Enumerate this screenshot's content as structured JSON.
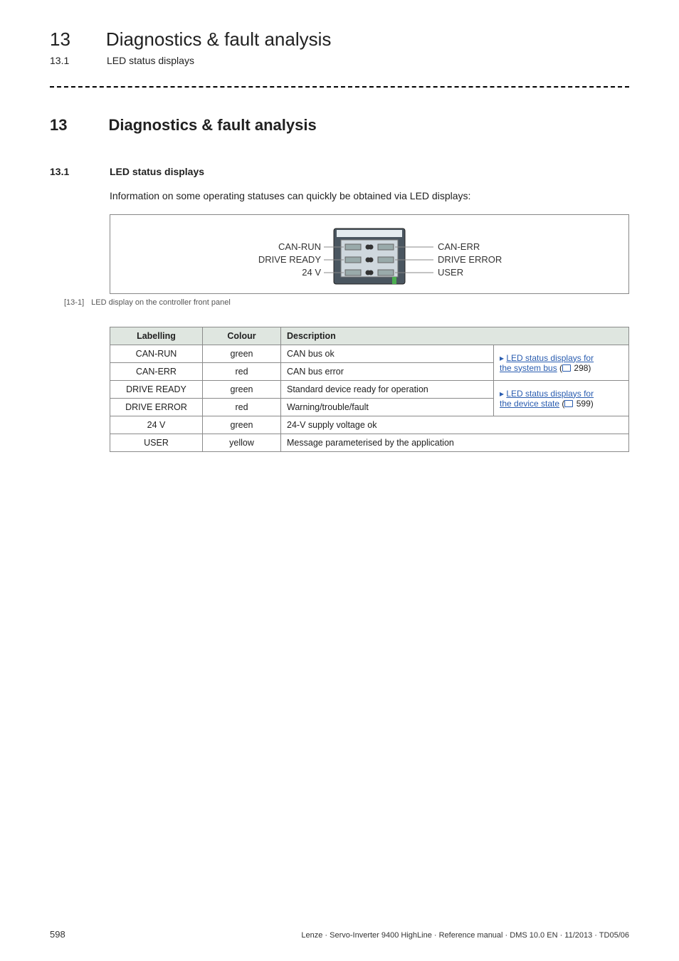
{
  "header": {
    "chapter_number": "13",
    "chapter_title": "Diagnostics & fault analysis",
    "section_number": "13.1",
    "section_title": "LED status displays"
  },
  "main_heading": {
    "number": "13",
    "title": "Diagnostics & fault analysis"
  },
  "section_heading": {
    "number": "13.1",
    "title": "LED status displays"
  },
  "intro_text": "Information on some operating statuses can quickly be obtained via LED displays:",
  "figure": {
    "left_labels": [
      "CAN-RUN",
      "DRIVE READY",
      "24 V"
    ],
    "right_labels": [
      "CAN-ERR",
      "DRIVE ERROR",
      "USER"
    ],
    "caption_tag": "[13-1]",
    "caption_text": "LED display on the controller front panel",
    "colors": {
      "body_fill": "#4a5660",
      "body_stroke": "#222",
      "face_fill": "#cfd8de",
      "hl_fill": "#e4ebef",
      "led_off": "#333333",
      "led_green": "#4caf50",
      "line": "#888888"
    }
  },
  "table": {
    "headers": {
      "labelling": "Labelling",
      "colour": "Colour",
      "description": "Description"
    },
    "rows": [
      {
        "labelling": "CAN-RUN",
        "colour": "green",
        "description": "CAN bus ok"
      },
      {
        "labelling": "CAN-ERR",
        "colour": "red",
        "description": "CAN bus error"
      },
      {
        "labelling": "DRIVE READY",
        "colour": "green",
        "description": "Standard device ready for operation"
      },
      {
        "labelling": "DRIVE ERROR",
        "colour": "red",
        "description": "Warning/trouble/fault"
      },
      {
        "labelling": "24 V",
        "colour": "green",
        "description": "24-V supply voltage ok"
      },
      {
        "labelling": "USER",
        "colour": "yellow",
        "description": "Message parameterised by the application"
      }
    ],
    "xref1": {
      "label": "LED status displays for",
      "link_text": "the system bus",
      "page": "298"
    },
    "xref2": {
      "label": "LED status displays for",
      "link_text": "the device state",
      "page": "599"
    }
  },
  "footer": {
    "page_number": "598",
    "doc_info": "Lenze · Servo-Inverter 9400 HighLine · Reference manual · DMS 10.0 EN · 11/2013 · TD05/06"
  }
}
